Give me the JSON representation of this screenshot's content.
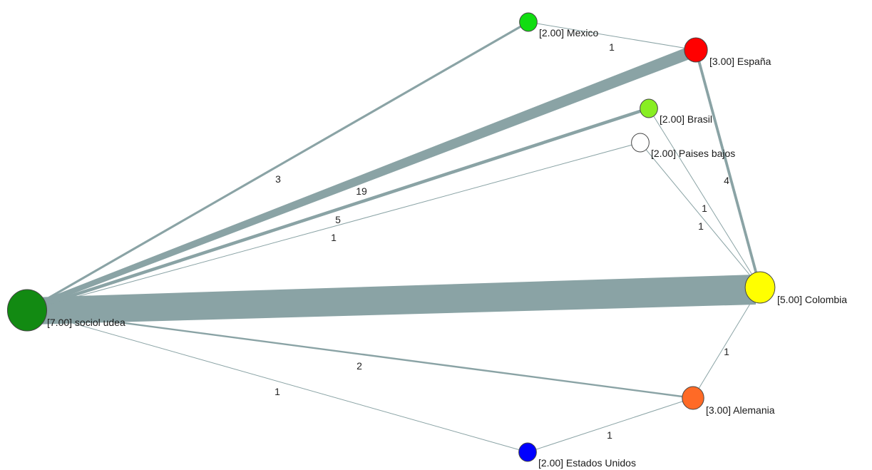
{
  "nodes": [
    {
      "id": "sociol",
      "label": "[7.00] sociol udea",
      "color": "#128a12"
    },
    {
      "id": "colombia",
      "label": "[5.00] Colombia",
      "color": "#ffff00"
    },
    {
      "id": "espana",
      "label": "[3.00] España",
      "color": "#ff0000"
    },
    {
      "id": "alemania",
      "label": "[3.00] Alemania",
      "color": "#ff6a26"
    },
    {
      "id": "mexico",
      "label": "[2.00] Mexico",
      "color": "#11dd11"
    },
    {
      "id": "brasil",
      "label": "[2.00] Brasil",
      "color": "#88ee22"
    },
    {
      "id": "paises",
      "label": "[2.00] Paises bajos",
      "color": "#ffffff"
    },
    {
      "id": "eeuu",
      "label": "[2.00] Estados Unidos",
      "color": "#0000ff"
    }
  ],
  "edges": [
    {
      "source": "sociol",
      "target": "colombia",
      "weight": "",
      "value": 40
    },
    {
      "source": "sociol",
      "target": "espana",
      "weight": "19",
      "value": 19
    },
    {
      "source": "sociol",
      "target": "brasil",
      "weight": "5",
      "value": 5
    },
    {
      "source": "sociol",
      "target": "mexico",
      "weight": "3",
      "value": 3
    },
    {
      "source": "sociol",
      "target": "paises",
      "weight": "1",
      "value": 1
    },
    {
      "source": "sociol",
      "target": "alemania",
      "weight": "2",
      "value": 2
    },
    {
      "source": "sociol",
      "target": "eeuu",
      "weight": "1",
      "value": 1
    },
    {
      "source": "mexico",
      "target": "espana",
      "weight": "1",
      "value": 1
    },
    {
      "source": "espana",
      "target": "colombia",
      "weight": "4",
      "value": 4
    },
    {
      "source": "brasil",
      "target": "colombia",
      "weight": "1",
      "value": 1
    },
    {
      "source": "paises",
      "target": "colombia",
      "weight": "1",
      "value": 1
    },
    {
      "source": "colombia",
      "target": "alemania",
      "weight": "1",
      "value": 1
    },
    {
      "source": "alemania",
      "target": "eeuu",
      "weight": "1",
      "value": 1
    }
  ],
  "edge_color": "#8aa3a5"
}
